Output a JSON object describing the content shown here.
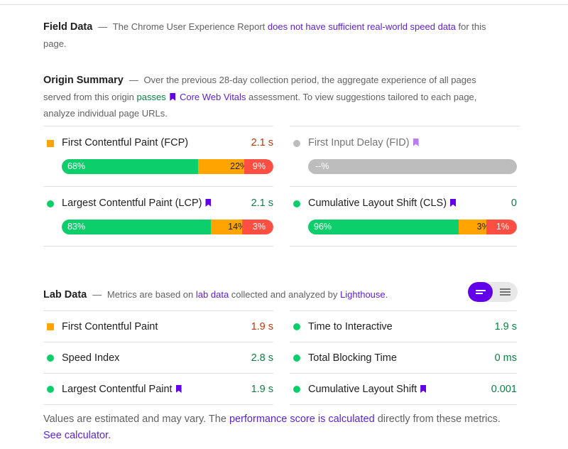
{
  "field_data": {
    "title": "Field Data",
    "dash": "—",
    "text_before": "The Chrome User Experience Report",
    "link": "does not have sufficient real-world speed data",
    "text_after": "for this page."
  },
  "origin_summary": {
    "title": "Origin Summary",
    "dash": "—",
    "text1": "Over the previous 28-day collection period, the aggregate experience of all pages served from this origin",
    "passes": "passes",
    "cwv_link": "Core Web Vitals",
    "text2": "assessment. To view suggestions tailored to each page, analyze individual page URLs."
  },
  "origin_metrics": {
    "fcp": {
      "name": "First Contentful Paint (FCP)",
      "value": "2.1 s",
      "good": "68%",
      "ni": "22%",
      "poor": "9%",
      "good_pct": 68,
      "ni_pct": 22,
      "poor_pct": 10
    },
    "fid": {
      "name": "First Input Delay (FID)",
      "value": "",
      "empty": "--%"
    },
    "lcp": {
      "name": "Largest Contentful Paint (LCP)",
      "value": "2.1 s",
      "good": "83%",
      "ni": "14%",
      "poor": "3%",
      "good_pct": 74,
      "ni_pct": 15,
      "poor_pct": 11
    },
    "cls": {
      "name": "Cumulative Layout Shift (CLS)",
      "value": "0",
      "good": "96%",
      "ni": "3%",
      "poor": "1%",
      "good_pct": 76,
      "ni_pct": 13,
      "poor_pct": 11
    }
  },
  "lab_data": {
    "title": "Lab Data",
    "dash": "—",
    "text1": "Metrics are based on",
    "lab_link": "lab data",
    "text2": "collected and analyzed by",
    "lh_link": "Lighthouse",
    "text3": ".",
    "metrics": [
      {
        "name": "First Contentful Paint",
        "value": "1.9 s"
      },
      {
        "name": "Time to Interactive",
        "value": "1.9 s"
      },
      {
        "name": "Speed Index",
        "value": "2.8 s"
      },
      {
        "name": "Total Blocking Time",
        "value": "0 ms"
      },
      {
        "name": "Largest Contentful Paint",
        "value": "1.9 s"
      },
      {
        "name": "Cumulative Layout Shift",
        "value": "0.001"
      }
    ]
  },
  "footer": {
    "text1": "Values are estimated and may vary. The",
    "link1": "performance score is calculated",
    "text2": "directly from these metrics.",
    "link2": "See calculator."
  },
  "colors": {
    "good": "#0cce6b",
    "needs_improvement": "#ffa400",
    "poor": "#ff4e42",
    "accent": "#6200ea"
  },
  "icons": {
    "average": "orange-square-icon",
    "pass": "green-circle-icon",
    "core_web_vital": "bookmark-icon",
    "toggle_expanded": "view-expanded-icon",
    "toggle_list": "view-list-icon"
  }
}
